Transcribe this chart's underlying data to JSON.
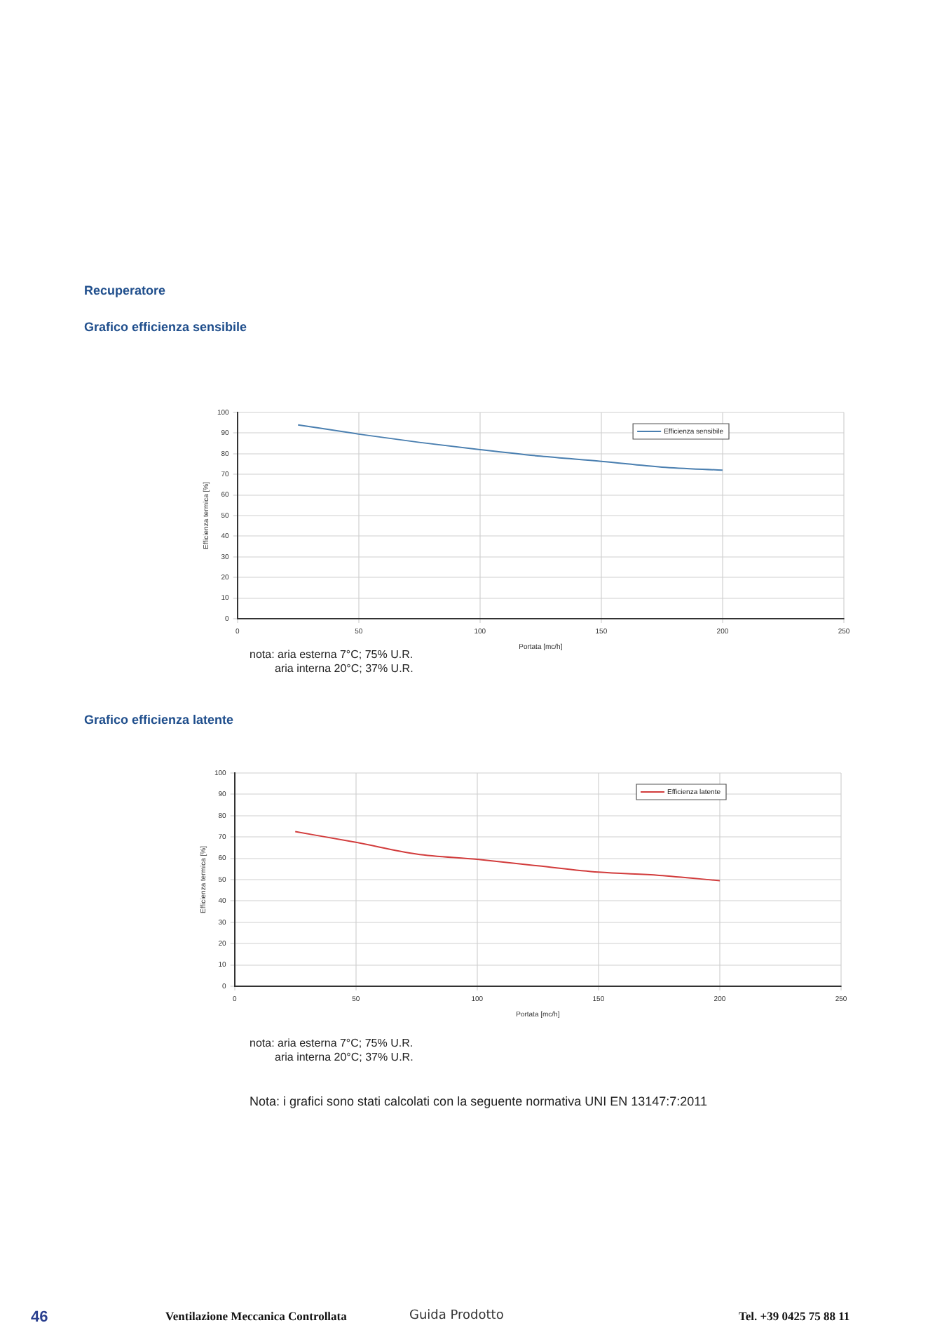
{
  "chart_data": [
    {
      "type": "line",
      "title": "Recuperatore",
      "subtitle": "Grafico efficienza sensibile",
      "xlabel": "Portata [mc/h]",
      "ylabel": "Efficienza termica [%]",
      "x": [
        25,
        50,
        75,
        100,
        125,
        150,
        175,
        200
      ],
      "series": [
        {
          "name": "Efficienza sensibile",
          "color": "#4a7fb0",
          "values": [
            94,
            89.5,
            85.5,
            82,
            78.8,
            76.3,
            73.5,
            72
          ]
        }
      ],
      "xlim": [
        0,
        250
      ],
      "xticks": [
        0,
        50,
        100,
        150,
        200,
        250
      ],
      "ylim": [
        0,
        100
      ],
      "yticks": [
        0,
        10,
        20,
        30,
        40,
        50,
        60,
        70,
        80,
        90,
        100
      ],
      "grid": true,
      "legend": "top right",
      "marker": "none",
      "annotations": [
        "nota: aria esterna 7°C; 75% U.R.",
        "aria interna 20°C; 37% U.R."
      ]
    },
    {
      "type": "line",
      "title": "Grafico efficienza latente",
      "xlabel": "Portata [mc/h]",
      "ylabel": "Efficienza termica [%]",
      "x": [
        25,
        50,
        75,
        100,
        125,
        150,
        175,
        200
      ],
      "series": [
        {
          "name": "Efficienza latente",
          "color": "#d23c3c",
          "values": [
            72.5,
            67.5,
            62,
            59.5,
            56.5,
            53.5,
            52,
            49.5
          ]
        }
      ],
      "xlim": [
        0,
        250
      ],
      "xticks": [
        0,
        50,
        100,
        150,
        200,
        250
      ],
      "ylim": [
        0,
        100
      ],
      "yticks": [
        0,
        10,
        20,
        30,
        40,
        50,
        60,
        70,
        80,
        90,
        100
      ],
      "grid": true,
      "legend": "top right",
      "marker": "none",
      "annotations": [
        "nota: aria esterna 7°C; 75% U.R.",
        "aria interna 20°C; 37% U.R.",
        "Nota: i grafici sono stati calcolati con la seguente normativa UNI EN 13147:7:2011",
        "46",
        "Ventilazione Meccanica Controllata",
        "Guida Prodotto",
        "Tel. +39 0425 75 88 11"
      ]
    }
  ]
}
